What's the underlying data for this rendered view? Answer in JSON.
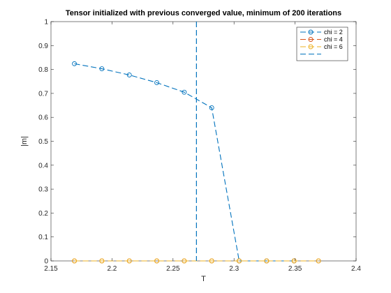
{
  "chart_data": {
    "type": "line",
    "title": "Tensor initialized with previous converged value, minimum of 200 iterations",
    "xlabel": "T",
    "ylabel": "|m|",
    "xlim": [
      2.15,
      2.4
    ],
    "ylim": [
      0,
      1
    ],
    "x_ticks": [
      2.15,
      2.2,
      2.25,
      2.3,
      2.35,
      2.4
    ],
    "x_tick_labels": [
      "2.15",
      "2.2",
      "2.25",
      "2.3",
      "2.35",
      "2.4"
    ],
    "y_ticks": [
      0,
      0.1,
      0.2,
      0.3,
      0.4,
      0.5,
      0.6,
      0.7,
      0.8,
      0.9,
      1
    ],
    "y_tick_labels": [
      "0",
      "0.1",
      "0.2",
      "0.3",
      "0.4",
      "0.5",
      "0.6",
      "0.7",
      "0.8",
      "0.9",
      "1"
    ],
    "grid": false,
    "legend_position": "top-right",
    "series": [
      {
        "name": "chi = 2",
        "color": "#0072BD",
        "line_style": "dashed",
        "marker": "circle",
        "x": [
          2.1692,
          2.1917,
          2.2142,
          2.2367,
          2.2592,
          2.2817,
          2.3042,
          2.3267,
          2.3492
        ],
        "y": [
          0.824,
          0.803,
          0.777,
          0.745,
          0.705,
          0.64,
          0.0,
          0.0,
          0.0
        ]
      },
      {
        "name": "chi = 4",
        "color": "#D95319",
        "line_style": "dashed",
        "marker": "circle",
        "x": [
          2.1692,
          2.1917,
          2.2142,
          2.2367,
          2.2592,
          2.2817,
          2.3042,
          2.3267,
          2.3492,
          2.3692
        ],
        "y": [
          0,
          0,
          0,
          0,
          0,
          0,
          0,
          0,
          0,
          0
        ]
      },
      {
        "name": "chi = 6",
        "color": "#EDB120",
        "line_style": "dashed",
        "marker": "circle",
        "x": [
          2.1692,
          2.1917,
          2.2142,
          2.2367,
          2.2592,
          2.2817,
          2.3042,
          2.3267,
          2.3492,
          2.3692
        ],
        "y": [
          0,
          0,
          0,
          0,
          0,
          0,
          0,
          0,
          0,
          0
        ]
      },
      {
        "name": "",
        "color": "#0072BD",
        "line_style": "dashed",
        "marker": "none",
        "vertical_line_x": 2.2692
      }
    ]
  }
}
